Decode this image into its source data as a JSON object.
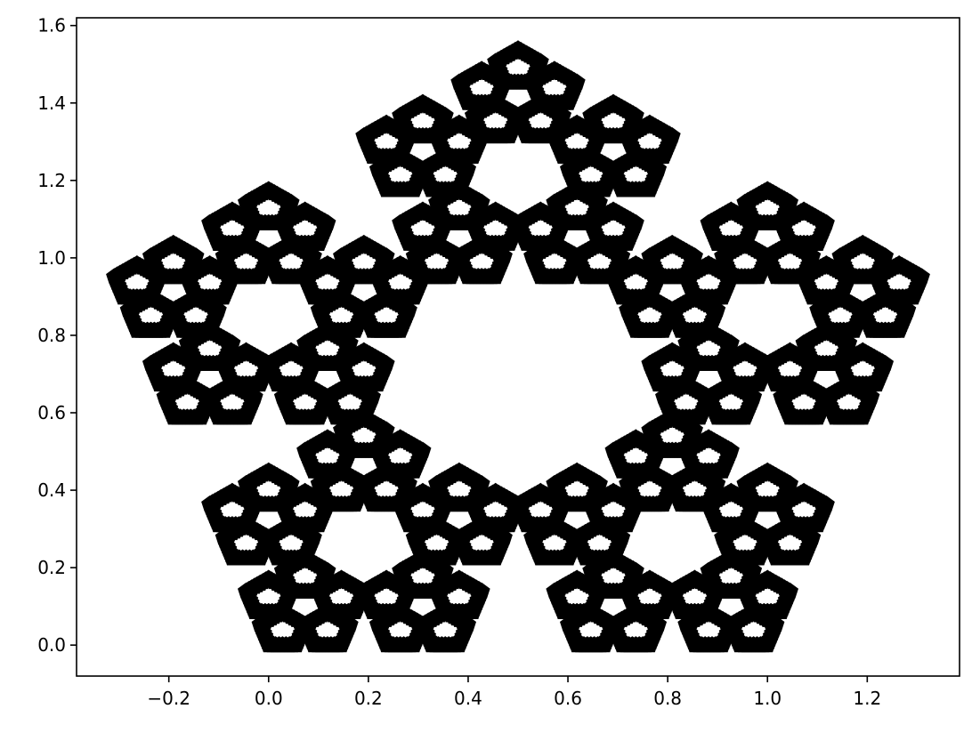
{
  "chart_data": {
    "type": "scatter",
    "title": "",
    "xlabel": "",
    "ylabel": "",
    "xlim": [
      -0.385,
      1.385
    ],
    "ylim": [
      -0.08,
      1.62
    ],
    "xticks": [
      -0.2,
      0.0,
      0.2,
      0.4,
      0.6,
      0.8,
      1.0,
      1.2
    ],
    "xtick_labels": [
      "−0.2",
      "0.0",
      "0.2",
      "0.4",
      "0.6",
      "0.8",
      "1.0",
      "1.2"
    ],
    "yticks": [
      0.0,
      0.2,
      0.4,
      0.6,
      0.8,
      1.0,
      1.2,
      1.4,
      1.6
    ],
    "ytick_labels": [
      "0.0",
      "0.2",
      "0.4",
      "0.6",
      "0.8",
      "1.0",
      "1.2",
      "1.4",
      "1.6"
    ],
    "grid": false,
    "legend": "none",
    "series": [
      {
        "marker": "pentagon",
        "color": "#000000",
        "fractal": "pentaflake",
        "base_pentagon_vertices": [
          [
            0.0,
            0.0
          ],
          [
            1.0,
            0.0
          ],
          [
            1.309,
            0.951
          ],
          [
            0.5,
            1.539
          ],
          [
            -0.309,
            0.951
          ]
        ],
        "levels": 3
      }
    ]
  }
}
